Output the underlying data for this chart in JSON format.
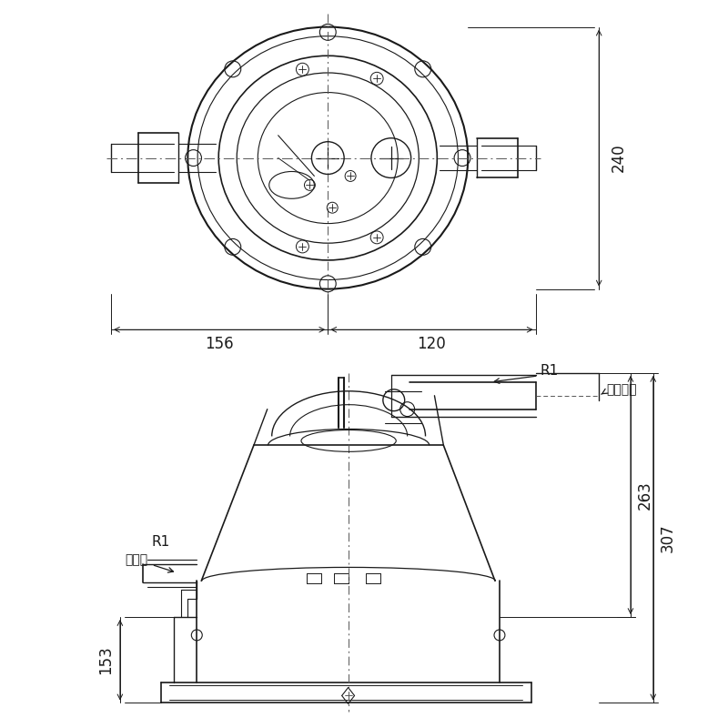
{
  "bg_color": "#ffffff",
  "lc": "#1a1a1a",
  "fig_width": 8.0,
  "fig_height": 8.0,
  "dims": {
    "top_width": "240",
    "left_dim": "156",
    "right_dim": "120",
    "h_outer": "307",
    "h_inner": "263",
    "h_bot": "153",
    "r1": "R1",
    "inlet": "吸込口",
    "outlet": "吐出し口"
  }
}
